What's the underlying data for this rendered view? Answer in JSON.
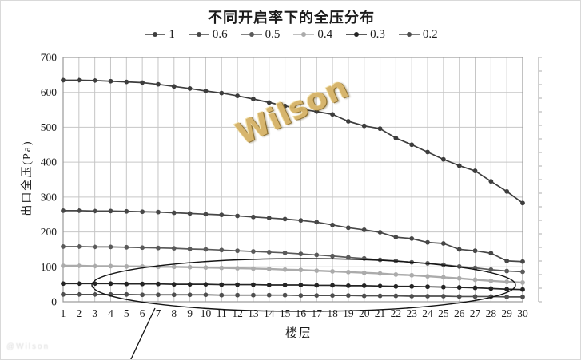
{
  "watermark": {
    "center": "Wilson",
    "corner": "@Wilson"
  },
  "colors": {
    "gridline": "#c6c6c6",
    "plot_border": "#9a9a9a",
    "secondary_axis": "#aeaeae",
    "annotation": "#141414",
    "text": "#1c1c1c",
    "watermark_gold": "#d5b266"
  },
  "chart_data": {
    "type": "line",
    "title": "不同开启率下的全压分布",
    "xlabel": "楼层",
    "ylabel": "出口全压(Pa)",
    "x": [
      1,
      2,
      3,
      4,
      5,
      6,
      7,
      8,
      9,
      10,
      11,
      12,
      13,
      14,
      15,
      16,
      17,
      18,
      19,
      20,
      21,
      22,
      23,
      24,
      25,
      26,
      27,
      28,
      29,
      30
    ],
    "ylim": [
      0,
      700
    ],
    "ytick_interval": 100,
    "grid": true,
    "legend_position": "top",
    "marker": "dot",
    "series": [
      {
        "name": "1",
        "color": "#3d3d3d",
        "values": [
          635,
          635,
          634,
          632,
          630,
          628,
          623,
          617,
          611,
          604,
          598,
          590,
          581,
          571,
          561,
          552,
          545,
          537,
          517,
          504,
          496,
          469,
          450,
          429,
          408,
          390,
          375,
          345,
          316,
          283
        ]
      },
      {
        "name": "0.6",
        "color": "#474747",
        "values": [
          261,
          261,
          260,
          260,
          259,
          258,
          257,
          255,
          253,
          251,
          249,
          246,
          243,
          240,
          237,
          233,
          228,
          220,
          212,
          206,
          199,
          185,
          181,
          170,
          167,
          150,
          146,
          139,
          117,
          115
        ]
      },
      {
        "name": "0.5",
        "color": "#5a5a5a",
        "values": [
          158,
          158,
          157,
          157,
          156,
          155,
          154,
          153,
          151,
          150,
          148,
          146,
          144,
          142,
          140,
          137,
          134,
          131,
          127,
          124,
          120,
          117,
          113,
          110,
          106,
          101,
          97,
          92,
          88,
          86
        ]
      },
      {
        "name": "0.4",
        "color": "#ababab",
        "values": [
          103,
          103,
          102,
          102,
          101,
          101,
          100,
          100,
          99,
          98,
          97,
          96,
          95,
          94,
          92,
          91,
          89,
          87,
          85,
          83,
          81,
          78,
          76,
          73,
          70,
          67,
          63,
          60,
          57,
          55
        ]
      },
      {
        "name": "0.3",
        "color": "#242424",
        "values": [
          52,
          52,
          52,
          52,
          51,
          51,
          51,
          50,
          50,
          50,
          49,
          49,
          49,
          48,
          48,
          48,
          47,
          47,
          46,
          46,
          45,
          44,
          44,
          43,
          42,
          41,
          40,
          38,
          36,
          35
        ]
      },
      {
        "name": "0.2",
        "color": "#4f4f4f",
        "values": [
          21,
          21,
          21,
          21,
          21,
          20,
          20,
          20,
          20,
          20,
          19,
          19,
          19,
          19,
          19,
          18,
          18,
          18,
          18,
          17,
          17,
          17,
          16,
          16,
          16,
          15,
          15,
          15,
          14,
          14
        ]
      }
    ],
    "annotation": {
      "type": "ellipse-callout",
      "note": "low-pressure series circled"
    }
  }
}
